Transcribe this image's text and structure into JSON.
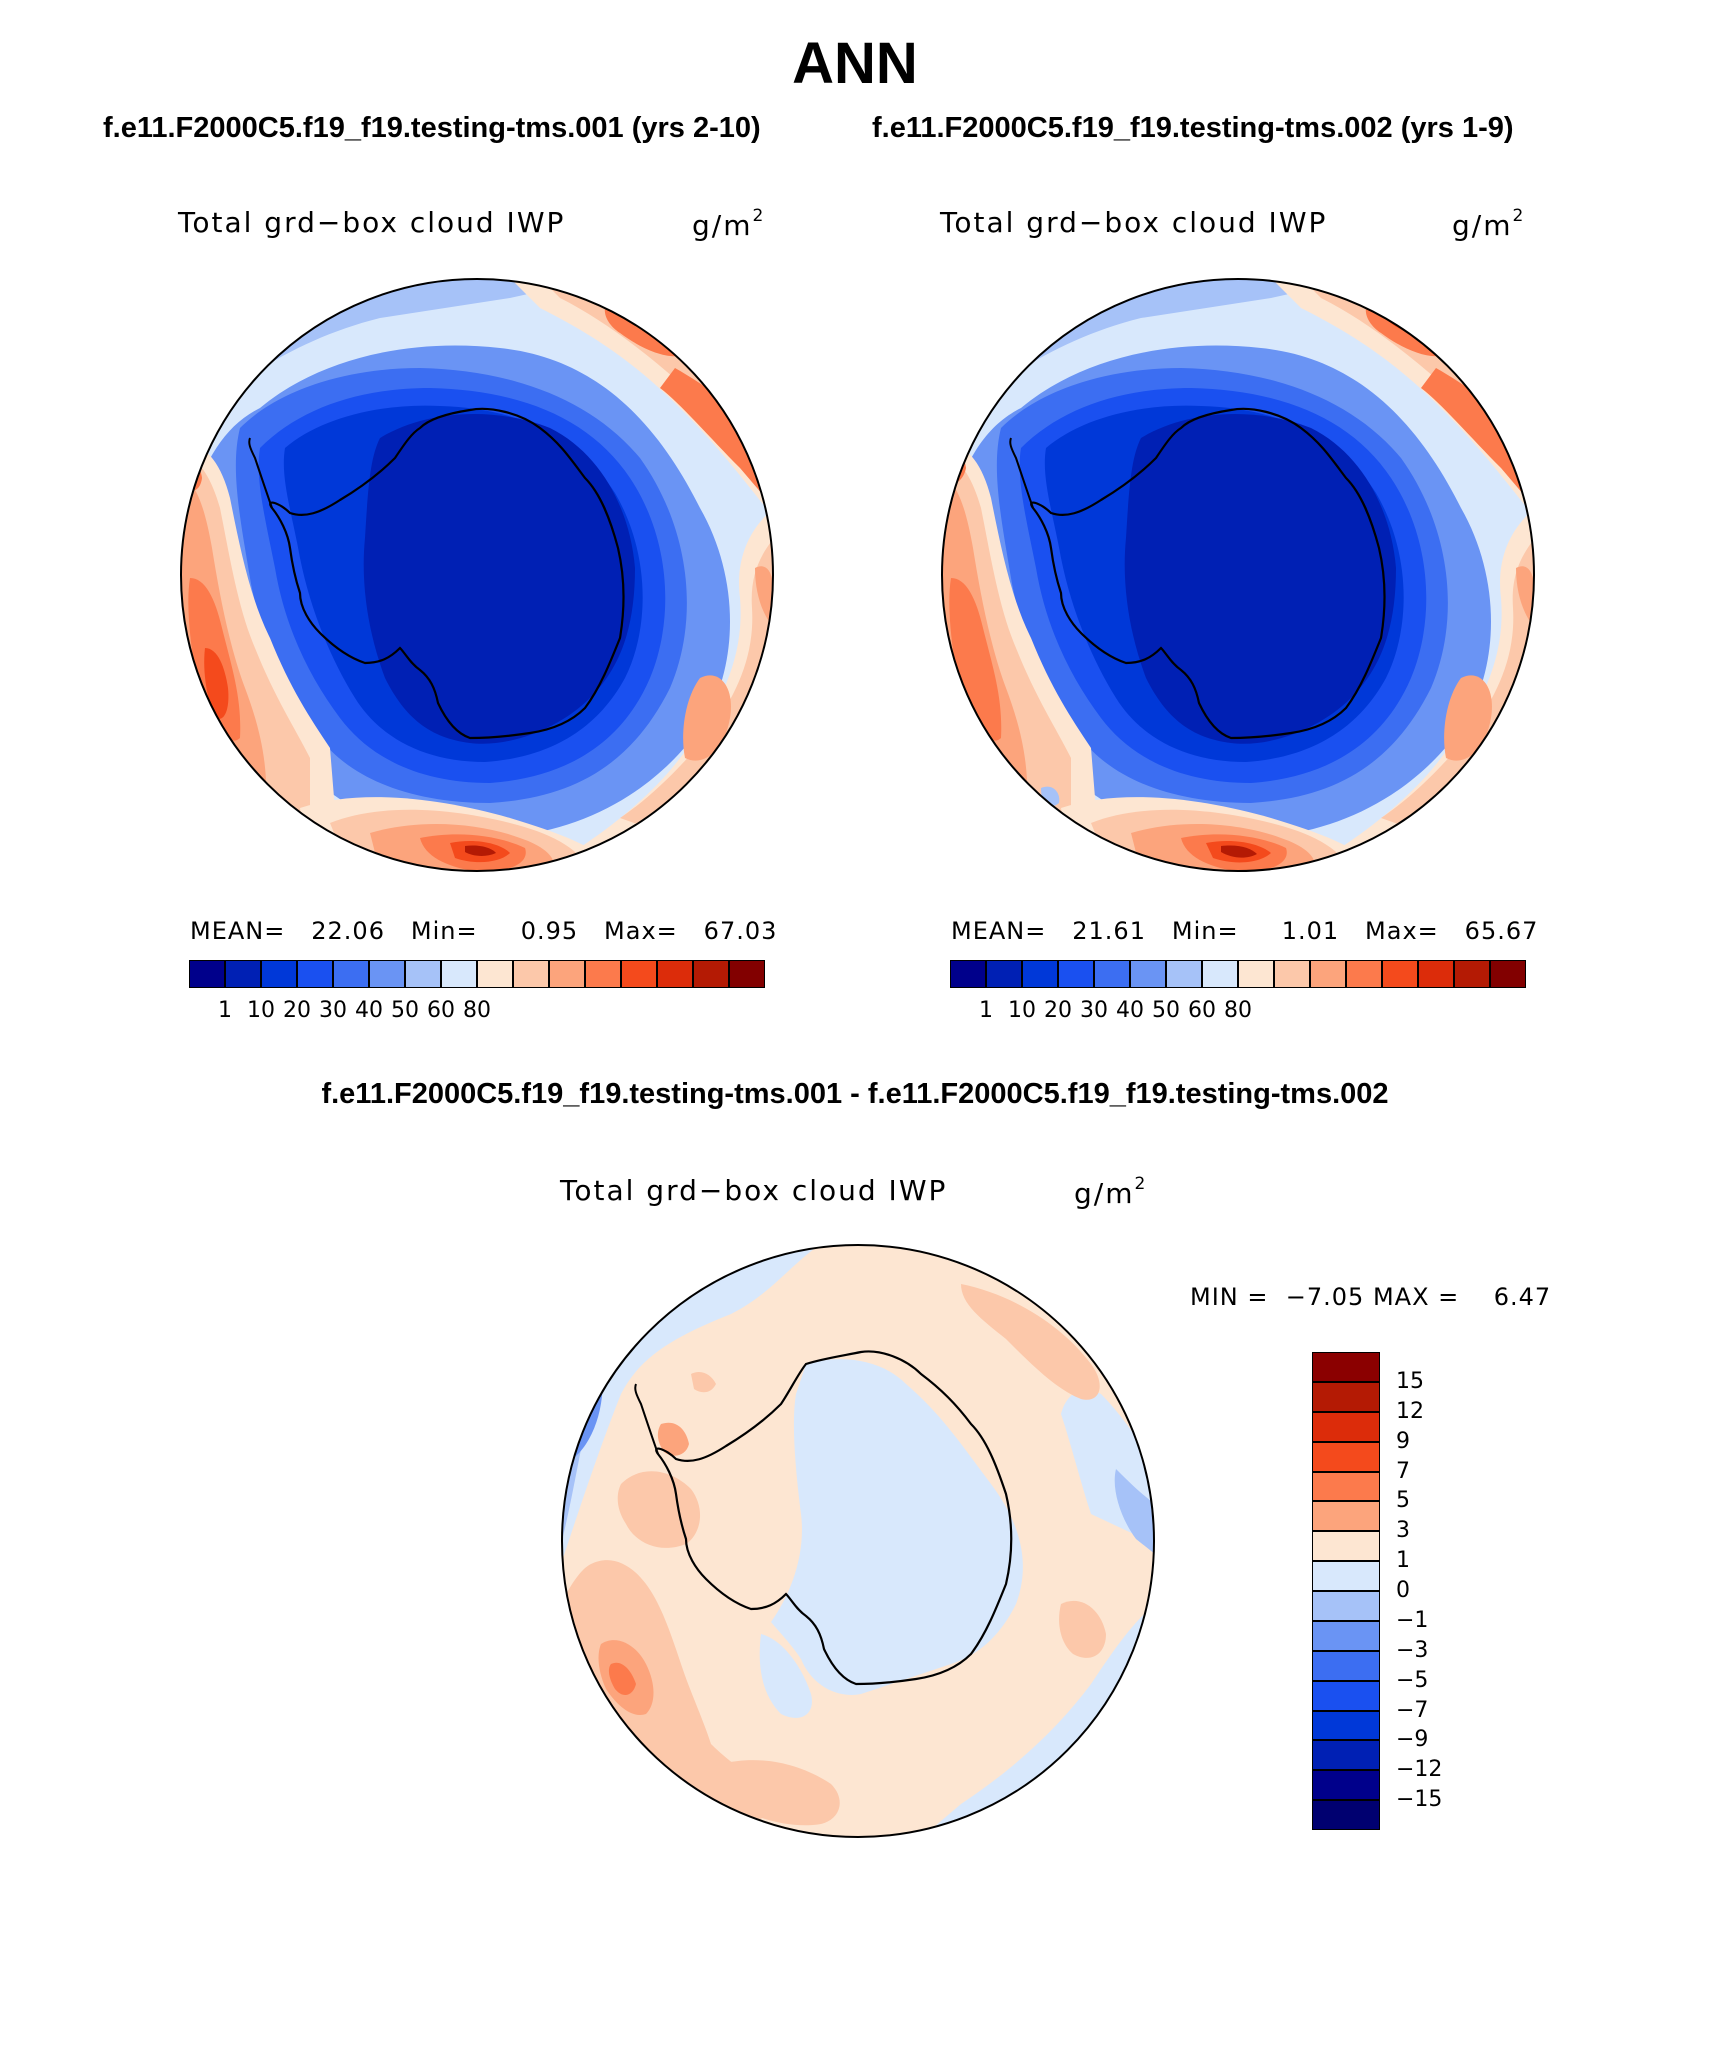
{
  "title": "ANN",
  "case1_title": "f.e11.F2000C5.f19_f19.testing-tms.001 (yrs 2-10)",
  "case2_title": "f.e11.F2000C5.f19_f19.testing-tms.002 (yrs 1-9)",
  "diff_title": "f.e11.F2000C5.f19_f19.testing-tms.001 - f.e11.F2000C5.f19_f19.testing-tms.002",
  "variable_label": "Total grd−box cloud IWP",
  "units": "g/m",
  "units_exp": "2",
  "panel1": {
    "mean_label": "MEAN=",
    "mean": "22.06",
    "min_label": "Min=",
    "min": "0.95",
    "max_label": "Max=",
    "max": "67.03"
  },
  "panel2": {
    "mean_label": "MEAN=",
    "mean": "21.61",
    "min_label": "Min=",
    "min": "1.01",
    "max_label": "Max=",
    "max": "65.67"
  },
  "panel3": {
    "min_label": "MIN =",
    "min": "−7.05",
    "max_label": "MAX =",
    "max": "6.47"
  },
  "colorbar_abs": {
    "ticks": [
      "1",
      "10",
      "20",
      "30",
      "40",
      "50",
      "60",
      "80"
    ],
    "colors": [
      "#00008b",
      "#0020b4",
      "#0038d8",
      "#1a50f0",
      "#3c6ef2",
      "#6a94f4",
      "#a6c2f8",
      "#d8e8fc",
      "#fde6d2",
      "#fcc8aa",
      "#fca47c",
      "#fc7a4c",
      "#f44a1c",
      "#dc2c0a",
      "#b41a04",
      "#820000"
    ]
  },
  "colorbar_diff": {
    "ticks": [
      "15",
      "12",
      "9",
      "7",
      "5",
      "3",
      "1",
      "0",
      "−1",
      "−3",
      "−5",
      "−7",
      "−9",
      "−12",
      "−15"
    ],
    "colors": [
      "#8b0000",
      "#b41a04",
      "#dc2c0a",
      "#f44a1c",
      "#fc7a4c",
      "#fca47c",
      "#fde6d2",
      "#d8e8fc",
      "#a6c2f8",
      "#6a94f4",
      "#3c6ef2",
      "#1a50f0",
      "#0038d8",
      "#0020b4",
      "#00008b",
      "#000070"
    ]
  }
}
